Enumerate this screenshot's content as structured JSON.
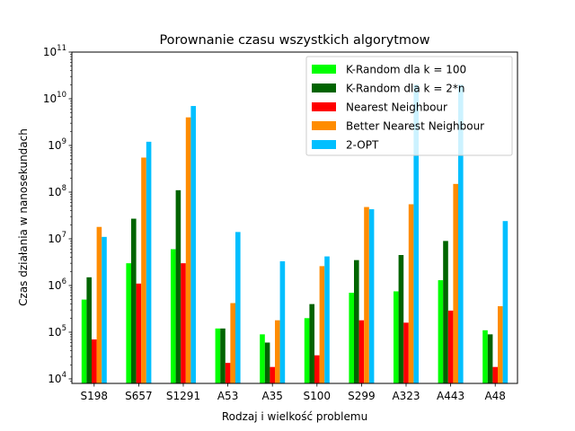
{
  "chart_data": {
    "type": "bar",
    "title": "Porownanie czasu wszystkich algorytmow",
    "xlabel": "Rodzaj i wielkość problemu",
    "ylabel": "Czas działania w nanosekundach",
    "yscale": "log",
    "ylim": [
      8000,
      100000000000
    ],
    "grid": false,
    "legend_position": "top-right",
    "categories": [
      "S198",
      "S657",
      "S1291",
      "A53",
      "A35",
      "S100",
      "S299",
      "A323",
      "A443",
      "A48"
    ],
    "y_ticks": [
      {
        "value": 10000,
        "base": "10",
        "exp": "4"
      },
      {
        "value": 100000,
        "base": "10",
        "exp": "5"
      },
      {
        "value": 1000000,
        "base": "10",
        "exp": "6"
      },
      {
        "value": 10000000,
        "base": "10",
        "exp": "7"
      },
      {
        "value": 100000000,
        "base": "10",
        "exp": "8"
      },
      {
        "value": 1000000000,
        "base": "10",
        "exp": "9"
      },
      {
        "value": 10000000000,
        "base": "10",
        "exp": "10"
      },
      {
        "value": 100000000000,
        "base": "10",
        "exp": "11"
      }
    ],
    "series": [
      {
        "name": "K-Random dla k = 100",
        "color": "#00ff00",
        "values": [
          500000,
          3000000,
          6000000,
          120000,
          90000,
          200000,
          700000,
          750000,
          1300000,
          110000
        ]
      },
      {
        "name": "K-Random dla k = 2*n",
        "color": "#006400",
        "values": [
          1500000,
          27000000,
          110000000,
          120000,
          60000,
          400000,
          3500000,
          4500000,
          9000000,
          90000
        ]
      },
      {
        "name": "Nearest Neighbour",
        "color": "#ff0000",
        "values": [
          70000,
          1100000,
          3000000,
          22000,
          18000,
          32000,
          180000,
          160000,
          290000,
          18000
        ]
      },
      {
        "name": "Better Nearest Neighbour",
        "color": "#ff8c00",
        "values": [
          18000000,
          550000000,
          4000000000,
          420000,
          180000,
          2600000,
          48000000,
          55000000,
          150000000,
          360000
        ]
      },
      {
        "name": "2-OPT",
        "color": "#00bfff",
        "values": [
          11000000,
          1200000000,
          7000000000,
          14000000,
          3300000,
          4200000,
          43000000,
          20000000000,
          20000000000,
          24000000
        ]
      }
    ]
  }
}
